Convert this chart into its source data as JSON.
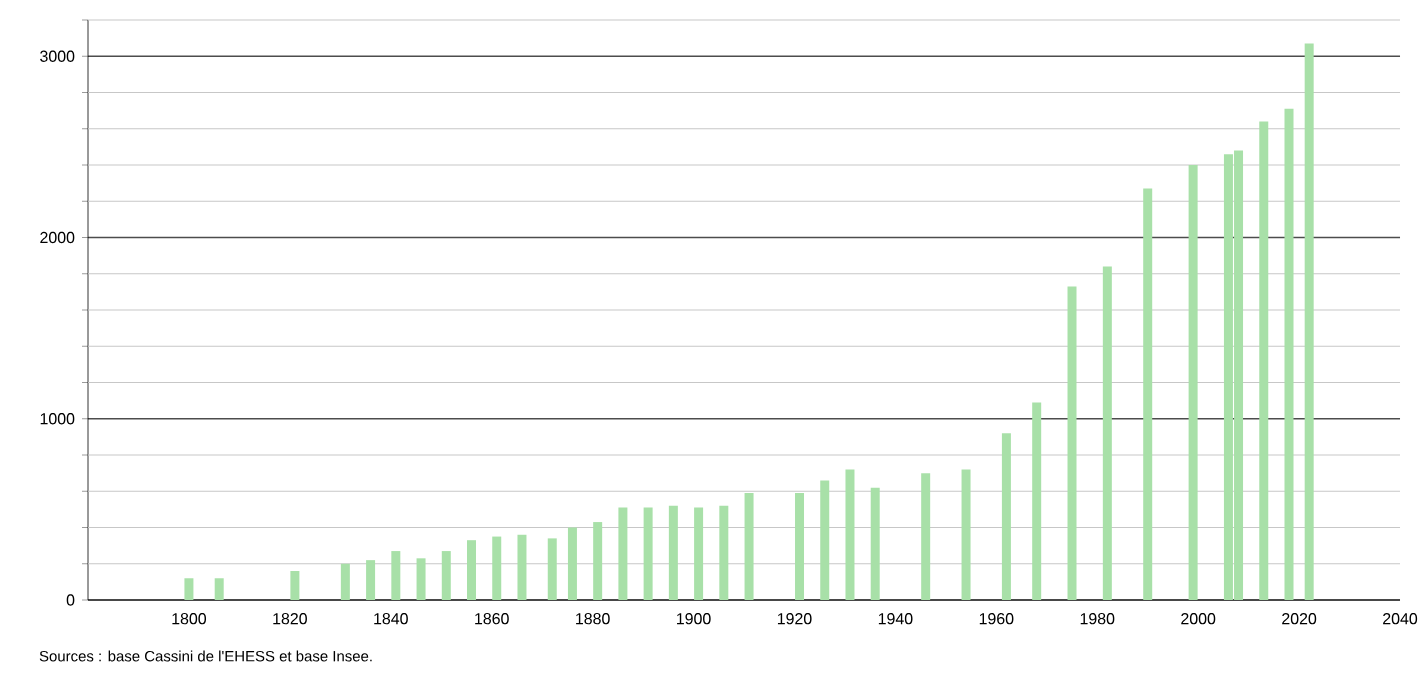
{
  "chart_data": {
    "type": "bar",
    "color": "#a8e0a8",
    "x": [
      1800,
      1806,
      1821,
      1831,
      1836,
      1841,
      1846,
      1851,
      1856,
      1861,
      1866,
      1872,
      1876,
      1881,
      1886,
      1891,
      1896,
      1901,
      1906,
      1911,
      1921,
      1926,
      1931,
      1936,
      1946,
      1954,
      1962,
      1968,
      1975,
      1982,
      1990,
      1999,
      2006,
      2008,
      2013,
      2018,
      2022
    ],
    "values": [
      120,
      120,
      160,
      200,
      220,
      270,
      230,
      270,
      330,
      350,
      360,
      340,
      400,
      430,
      510,
      510,
      520,
      510,
      520,
      590,
      590,
      660,
      720,
      620,
      700,
      720,
      920,
      1090,
      1730,
      1840,
      2270,
      2400,
      2460,
      2480,
      2640,
      2710,
      3070
    ],
    "xlim": [
      1780,
      2040
    ],
    "xticks": [
      1800,
      1820,
      1840,
      1860,
      1880,
      1900,
      1920,
      1940,
      1960,
      1980,
      2000,
      2020,
      2040
    ],
    "ylim": [
      0,
      3200
    ],
    "yticks": [
      0,
      {
        "value": 200,
        "label": null
      },
      {
        "value": 400,
        "label": null
      },
      {
        "value": 600,
        "label": null
      },
      {
        "value": 800,
        "label": null
      },
      1000,
      {
        "value": 1200,
        "label": null
      },
      {
        "value": 1400,
        "label": null
      },
      {
        "value": 1600,
        "label": null
      },
      {
        "value": 1800,
        "label": null
      },
      2000,
      {
        "value": 2200,
        "label": null
      },
      {
        "value": 2400,
        "label": null
      },
      {
        "value": 2600,
        "label": null
      },
      {
        "value": 2800,
        "label": null
      },
      3000,
      {
        "value": 3200,
        "label": null
      }
    ],
    "grid": "y",
    "annotations": [
      "Sources : base Cassini de l'EHESS et base Insee."
    ]
  }
}
